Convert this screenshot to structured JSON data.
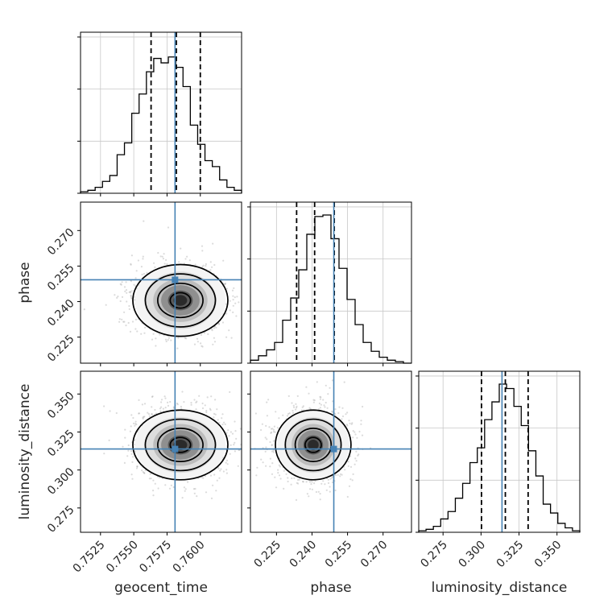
{
  "chart_data": {
    "type": "corner",
    "truth_color": "#4682b4",
    "grid": true,
    "parameters": [
      {
        "name": "geocent_time",
        "label": "geocent_time",
        "range": [
          0.751,
          0.7631
        ],
        "ticks": [
          "0.7525",
          "0.7550",
          "0.7575",
          "0.7600"
        ],
        "tick_values": [
          0.7525,
          0.755,
          0.7575,
          0.76
        ],
        "truth": 0.7581,
        "quantiles": [
          0.7563,
          0.7582,
          0.76
        ],
        "histogram": [
          0.01,
          0.02,
          0.04,
          0.08,
          0.12,
          0.26,
          0.34,
          0.54,
          0.67,
          0.82,
          0.91,
          0.88,
          0.92,
          0.85,
          0.72,
          0.46,
          0.33,
          0.22,
          0.18,
          0.09,
          0.04,
          0.02
        ]
      },
      {
        "name": "phase",
        "label": "phase",
        "range": [
          0.214,
          0.282
        ],
        "ticks": [
          "0.225",
          "0.240",
          "0.255",
          "0.270"
        ],
        "tick_values": [
          0.225,
          0.24,
          0.255,
          0.27
        ],
        "truth": 0.2492,
        "quantiles": [
          0.2335,
          0.2411,
          0.2494
        ],
        "histogram": [
          0.02,
          0.05,
          0.09,
          0.14,
          0.29,
          0.44,
          0.63,
          0.87,
          0.99,
          1.0,
          0.84,
          0.64,
          0.43,
          0.26,
          0.14,
          0.08,
          0.04,
          0.02,
          0.01,
          0.0
        ]
      },
      {
        "name": "luminosity_distance",
        "label": "luminosity_distance",
        "range": [
          0.259,
          0.365
        ],
        "ticks": [
          "0.275",
          "0.300",
          "0.325",
          "0.350"
        ],
        "tick_values": [
          0.275,
          0.3,
          0.325,
          0.35
        ],
        "truth": 0.3138,
        "quantiles": [
          0.3003,
          0.316,
          0.331
        ],
        "histogram": [
          0.01,
          0.02,
          0.04,
          0.09,
          0.14,
          0.23,
          0.33,
          0.47,
          0.57,
          0.76,
          0.88,
          1.0,
          0.97,
          0.85,
          0.72,
          0.55,
          0.38,
          0.19,
          0.13,
          0.06,
          0.03,
          0.01
        ]
      }
    ],
    "joint": [
      {
        "x": "geocent_time",
        "y": "phase",
        "center": [
          0.7585,
          0.2405
        ],
        "sigma": [
          0.0017,
          0.0076
        ],
        "ticks_y": [
          "0.225",
          "0.240",
          "0.255",
          "0.270"
        ]
      },
      {
        "x": "geocent_time",
        "y": "luminosity_distance",
        "center": [
          0.7585,
          0.3165
        ],
        "sigma": [
          0.0017,
          0.0115
        ],
        "ticks_y": [
          "0.275",
          "0.300",
          "0.325",
          "0.350"
        ]
      },
      {
        "x": "phase",
        "y": "luminosity_distance",
        "center": [
          0.2405,
          0.3165
        ],
        "sigma": [
          0.0076,
          0.0115
        ],
        "ticks_y": [
          "0.275",
          "0.300",
          "0.325",
          "0.350"
        ]
      }
    ]
  }
}
